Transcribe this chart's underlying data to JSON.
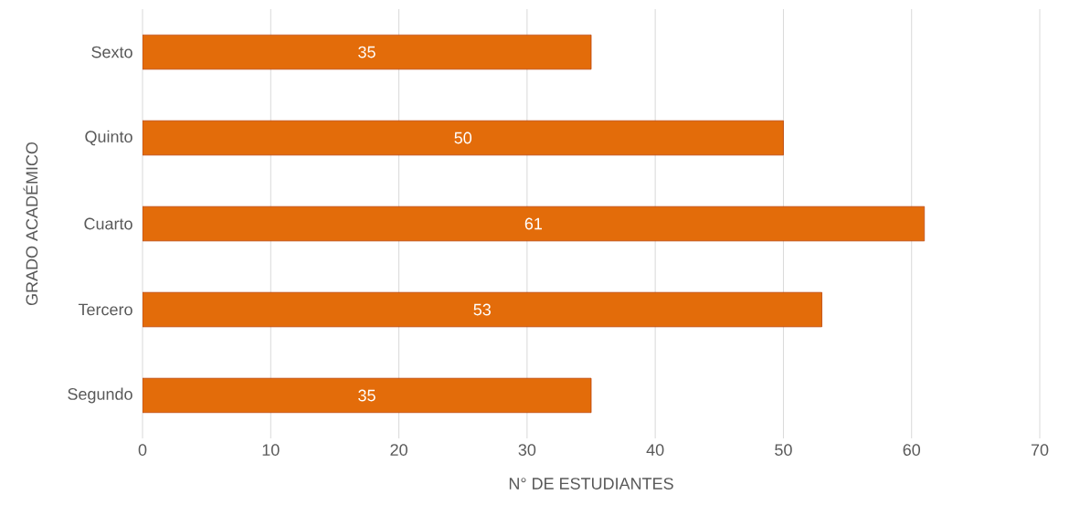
{
  "chart_data": {
    "type": "bar",
    "orientation": "horizontal",
    "xlabel": "N° DE ESTUDIANTES",
    "ylabel": "GRADO ACADÉMICO",
    "categories": [
      "Sexto",
      "Quinto",
      "Cuarto",
      "Tercero",
      "Segundo"
    ],
    "values": [
      35,
      50,
      61,
      53,
      35
    ],
    "color": "#e36c0a",
    "xlim": [
      0,
      70
    ],
    "xticks": [
      0,
      10,
      20,
      30,
      40,
      50,
      60,
      70
    ],
    "grid": "x",
    "data_labels": true
  }
}
